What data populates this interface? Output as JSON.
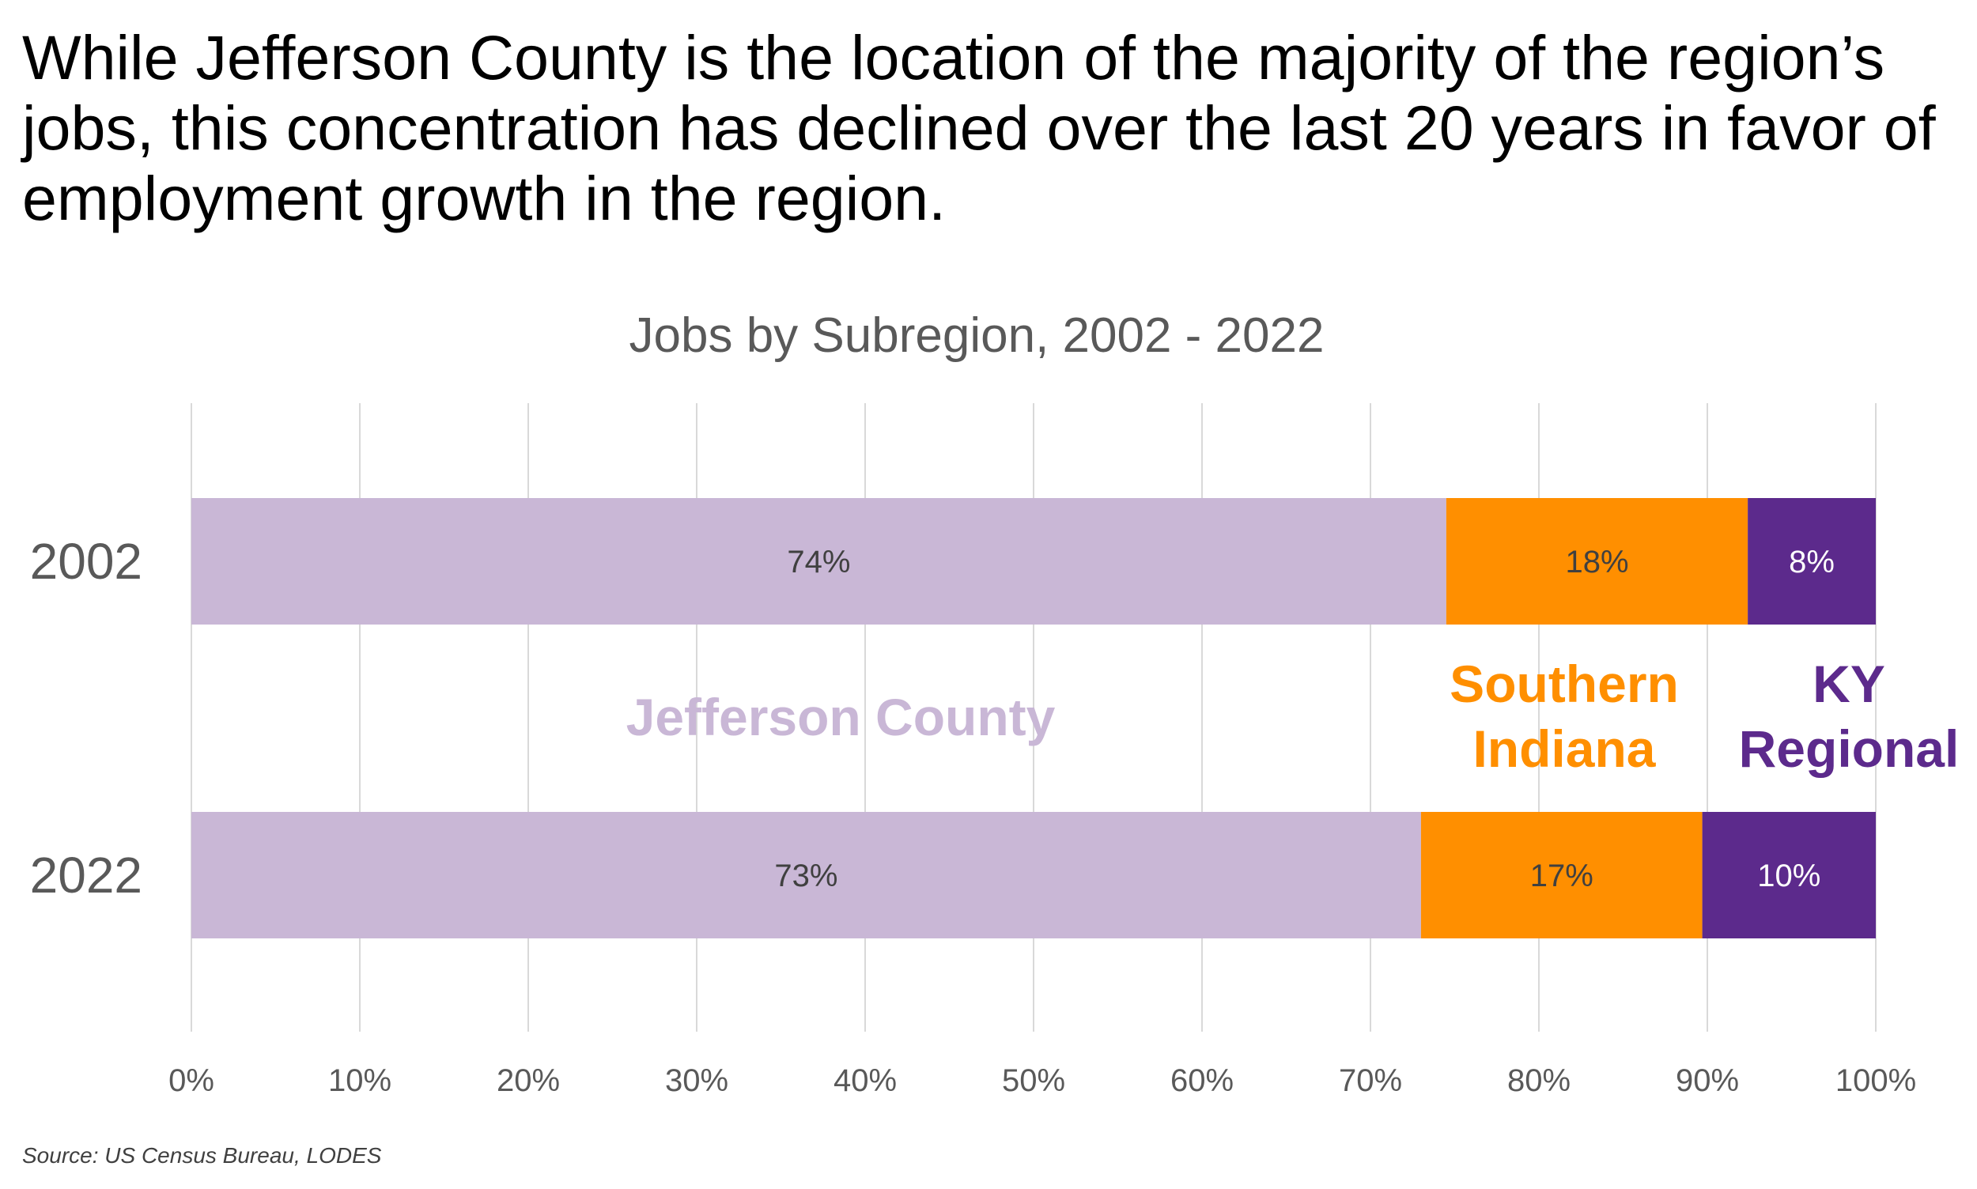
{
  "headline": "While Jefferson County is the location of the majority of the region’s jobs, this concentration has declined over the last 20 years in favor of employment growth in the region.",
  "source": "Source: US Census Bureau, LODES",
  "colors": {
    "jefferson": "#C9B7D6",
    "southern_indiana": "#FF8F00",
    "ky_regional": "#5C2A8C",
    "gridline": "#D9D9D9",
    "dark_label": "#404040",
    "light_label": "#FFFFFF"
  },
  "chart_data": {
    "type": "bar",
    "orientation": "horizontal",
    "stacked": true,
    "title": "Jobs by Subregion, 2002 - 2022",
    "categories": [
      "2002",
      "2022"
    ],
    "series": [
      {
        "name": "Jefferson County",
        "values": [
          74.5,
          73
        ],
        "labels": [
          "74%",
          "73%"
        ],
        "legend_lines": [
          "Jefferson County"
        ]
      },
      {
        "name": "Southern Indiana",
        "values": [
          17.9,
          16.7
        ],
        "labels": [
          "18%",
          "17%"
        ],
        "legend_lines": [
          "Southern",
          "Indiana"
        ]
      },
      {
        "name": "KY Regional",
        "values": [
          7.6,
          10.3
        ],
        "labels": [
          "8%",
          "10%"
        ],
        "legend_lines": [
          "KY",
          "Regional"
        ]
      }
    ],
    "xlim": [
      0,
      100
    ],
    "xticks": [
      0,
      10,
      20,
      30,
      40,
      50,
      60,
      70,
      80,
      90,
      100
    ],
    "xtick_labels": [
      "0%",
      "10%",
      "20%",
      "30%",
      "40%",
      "50%",
      "60%",
      "70%",
      "80%",
      "90%",
      "100%"
    ],
    "grid": true
  }
}
